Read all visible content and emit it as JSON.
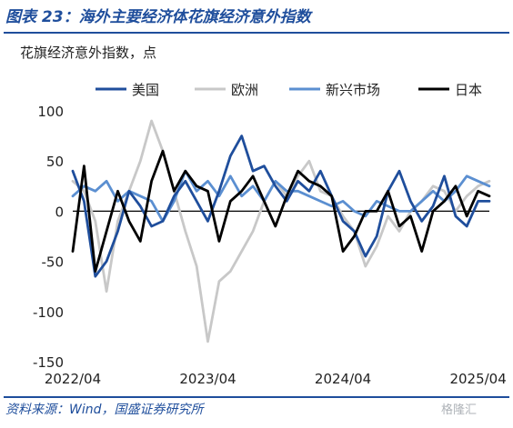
{
  "figure_title": "图表 23：海外主要经济体花旗经济意外指数",
  "source": "资料来源：Wind，国盛证券研究所",
  "watermark": "格隆汇",
  "colors": {
    "title": "#1f4e9c",
    "us": "#1f4e9c",
    "eu": "#c8c8c8",
    "em": "#5b8fd1",
    "jp": "#000000"
  },
  "chart_data": {
    "type": "line",
    "title": "",
    "ylabel": "花旗经济意外指数，点",
    "xlabel": "",
    "ylim": [
      -150,
      100
    ],
    "yticks": [
      100,
      50,
      0,
      -50,
      -100,
      -150
    ],
    "x_range": [
      "2022-04",
      "2025-05"
    ],
    "x_ticks": [
      "2022/04",
      "2023/04",
      "2024/04",
      "2025/04"
    ],
    "legend_position": "top",
    "x": [
      "2022-04",
      "2022-05",
      "2022-06",
      "2022-07",
      "2022-08",
      "2022-09",
      "2022-10",
      "2022-11",
      "2022-12",
      "2023-01",
      "2023-02",
      "2023-03",
      "2023-04",
      "2023-05",
      "2023-06",
      "2023-07",
      "2023-08",
      "2023-09",
      "2023-10",
      "2023-11",
      "2023-12",
      "2024-01",
      "2024-02",
      "2024-03",
      "2024-04",
      "2024-05",
      "2024-06",
      "2024-07",
      "2024-08",
      "2024-09",
      "2024-10",
      "2024-11",
      "2024-12",
      "2025-01",
      "2025-02",
      "2025-03",
      "2025-04",
      "2025-05"
    ],
    "series": [
      {
        "name": "美国",
        "color": "#1f4e9c",
        "width": 2.8,
        "values": [
          40,
          10,
          -65,
          -50,
          -20,
          20,
          5,
          -15,
          -10,
          15,
          30,
          10,
          -10,
          20,
          55,
          75,
          40,
          45,
          25,
          10,
          30,
          20,
          40,
          15,
          -10,
          -20,
          -45,
          -25,
          20,
          40,
          10,
          -10,
          5,
          35,
          -5,
          -15,
          10,
          10
        ]
      },
      {
        "name": "欧洲",
        "color": "#c8c8c8",
        "width": 2.8,
        "values": [
          30,
          20,
          -10,
          -80,
          -10,
          20,
          50,
          90,
          60,
          20,
          -20,
          -55,
          -130,
          -70,
          -60,
          -40,
          -20,
          10,
          30,
          15,
          35,
          50,
          20,
          15,
          -5,
          -20,
          -55,
          -35,
          -5,
          -20,
          0,
          10,
          25,
          20,
          0,
          15,
          25,
          30
        ]
      },
      {
        "name": "新兴市场",
        "color": "#5b8fd1",
        "width": 2.8,
        "values": [
          15,
          25,
          20,
          30,
          10,
          20,
          15,
          10,
          -10,
          10,
          40,
          20,
          30,
          15,
          35,
          15,
          25,
          10,
          30,
          20,
          20,
          15,
          10,
          5,
          10,
          0,
          -5,
          10,
          5,
          0,
          0,
          10,
          20,
          10,
          20,
          35,
          30,
          25
        ]
      },
      {
        "name": "日本",
        "color": "#000000",
        "width": 2.8,
        "values": [
          -40,
          45,
          -60,
          -20,
          20,
          -10,
          -30,
          30,
          60,
          20,
          40,
          25,
          20,
          -30,
          10,
          20,
          35,
          10,
          -15,
          15,
          40,
          30,
          25,
          15,
          -40,
          -25,
          0,
          0,
          20,
          -15,
          -5,
          -40,
          0,
          10,
          25,
          -5,
          20,
          15
        ]
      }
    ]
  }
}
